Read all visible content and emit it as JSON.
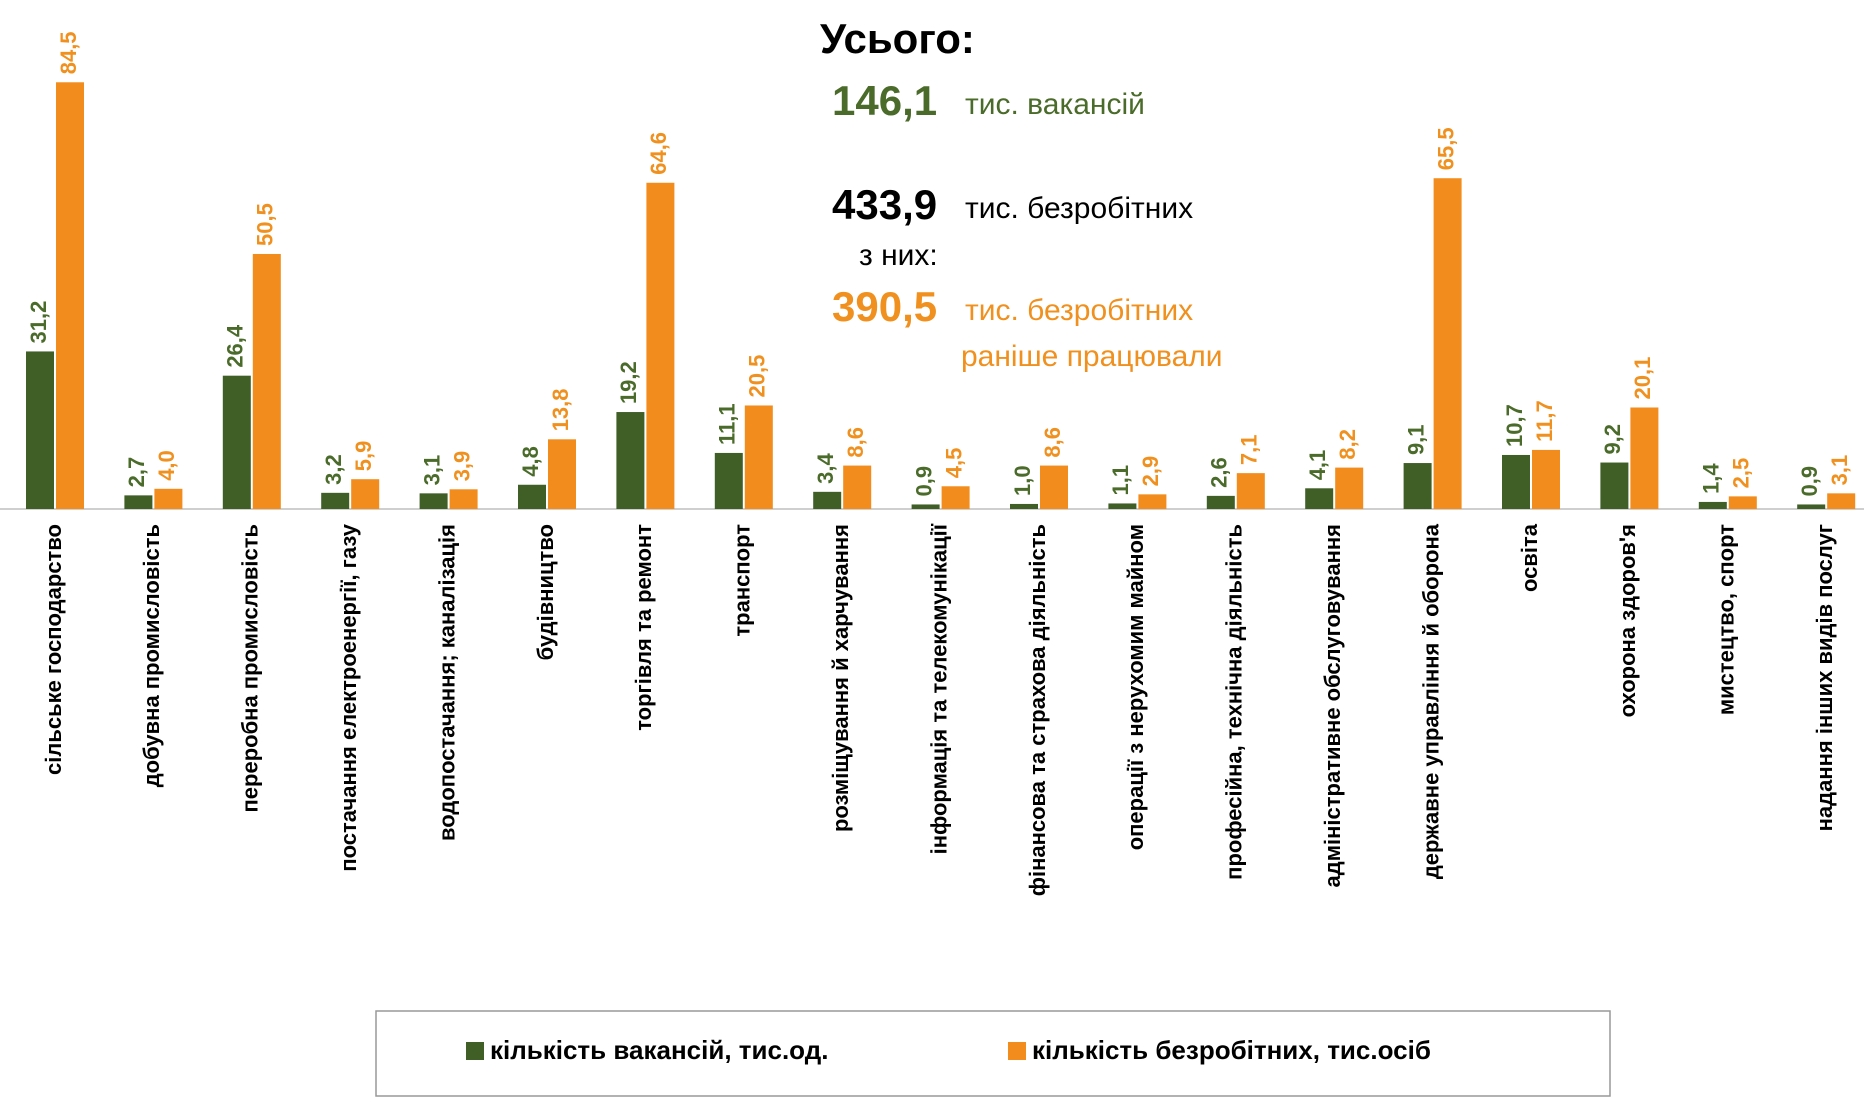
{
  "chart_data": {
    "type": "bar",
    "annotations": {
      "title": "Усього:",
      "vacancies_value": "146,1",
      "vacancies_text": "тис. вакансій",
      "unemployed_value": "433,9",
      "unemployed_text": "тис. безробітних",
      "of_them": "з них:",
      "worked_value": "390,5",
      "worked_text": "тис. безробітних",
      "worked_text2": "раніше працювали"
    },
    "categories": [
      "сільське господарство",
      "добувна промисловість",
      "переробна промисловість",
      "постачання електроенергії, газу",
      "водопостачання; каналізація",
      "будівництво",
      "торгівля та ремонт",
      "транспорт",
      "розміщування й харчування",
      "інформація та телекомунікації",
      "фінансова та страхова діяльність",
      "операції з нерухомим майном",
      "професійна, технічна діяльність",
      "адміністративне обслуговування",
      "державне управління й оборона",
      "освіта",
      "охорона здоров'я",
      "мистецтво, спорт",
      "надання інших видів послуг"
    ],
    "series": [
      {
        "name": "кількість вакансій, тис.од.",
        "color": "#3f5f27",
        "label_color": "#4a6b2a",
        "values": [
          31.2,
          2.7,
          26.4,
          3.2,
          3.1,
          4.8,
          19.2,
          11.1,
          3.4,
          0.9,
          1.0,
          1.1,
          2.6,
          4.1,
          9.1,
          10.7,
          9.2,
          1.4,
          0.9
        ],
        "value_labels": [
          "31,2",
          "2,7",
          "26,4",
          "3,2",
          "3,1",
          "4,8",
          "19,2",
          "11,1",
          "3,4",
          "0,9",
          "1,0",
          "1,1",
          "2,6",
          "4,1",
          "9,1",
          "10,7",
          "9,2",
          "1,4",
          "0,9"
        ]
      },
      {
        "name": "кількість безробітних, тис.осіб",
        "color": "#f28c1c",
        "label_color": "#f0901e",
        "values": [
          84.5,
          4.0,
          50.5,
          5.9,
          3.9,
          13.8,
          64.6,
          20.5,
          8.6,
          4.5,
          8.6,
          2.9,
          7.1,
          8.2,
          65.5,
          11.7,
          20.1,
          2.5,
          3.1
        ],
        "value_labels": [
          "84,5",
          "4,0",
          "50,5",
          "5,9",
          "3,9",
          "13,8",
          "64,6",
          "20,5",
          "8,6",
          "4,5",
          "8,6",
          "2,9",
          "7,1",
          "8,2",
          "65,5",
          "11,7",
          "20,1",
          "2,5",
          "3,1"
        ]
      }
    ]
  }
}
